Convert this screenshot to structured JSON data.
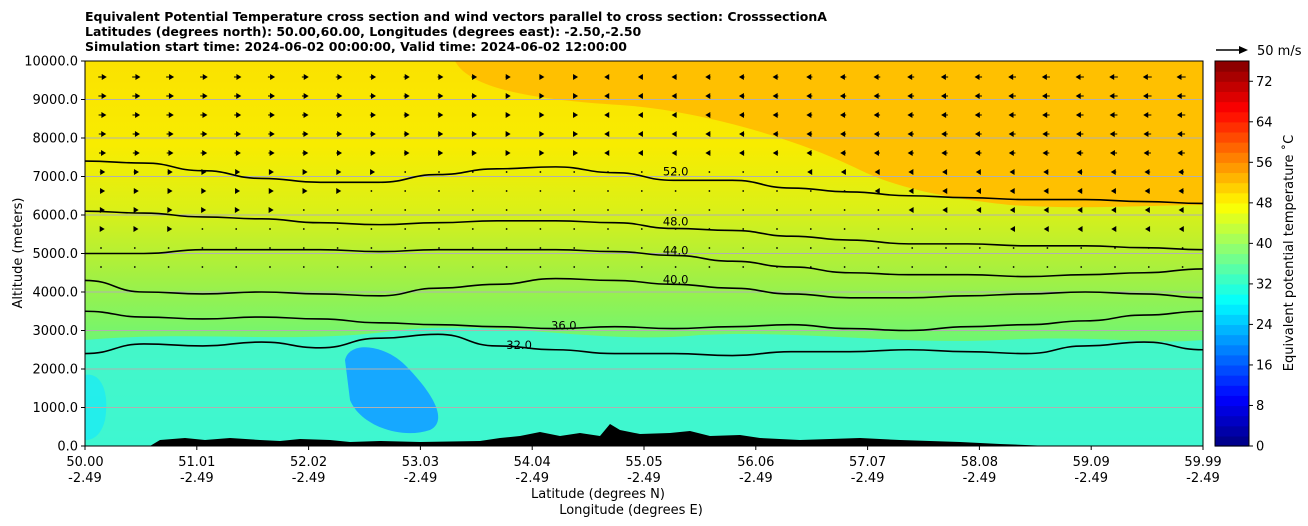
{
  "chart_data": {
    "type": "contourf-cross-section",
    "title_lines": [
      "Equivalent Potential Temperature cross section and wind vectors parallel to cross section: CrosssectionA",
      "Latitudes (degrees north): 50.00,60.00, Longitudes (degrees east): -2.50,-2.50",
      "Simulation start time: 2024-06-02 00:00:00, Valid time: 2024-06-02 12:00:00"
    ],
    "xlabel": "Latitude (degrees N)",
    "xlabel2": "Longitude (degrees E)",
    "ylabel": "Altitude (meters)",
    "xlim": [
      50.0,
      59.99
    ],
    "ylim": [
      0,
      10000
    ],
    "x_ticks": [
      {
        "lat": "50.00",
        "lon": "-2.49"
      },
      {
        "lat": "51.01",
        "lon": "-2.49"
      },
      {
        "lat": "52.02",
        "lon": "-2.49"
      },
      {
        "lat": "53.03",
        "lon": "-2.49"
      },
      {
        "lat": "54.04",
        "lon": "-2.49"
      },
      {
        "lat": "55.05",
        "lon": "-2.49"
      },
      {
        "lat": "56.06",
        "lon": "-2.49"
      },
      {
        "lat": "57.07",
        "lon": "-2.49"
      },
      {
        "lat": "58.08",
        "lon": "-2.49"
      },
      {
        "lat": "59.09",
        "lon": "-2.49"
      },
      {
        "lat": "59.99",
        "lon": "-2.49"
      }
    ],
    "y_ticks": [
      "0.0",
      "1000.0",
      "2000.0",
      "3000.0",
      "4000.0",
      "5000.0",
      "6000.0",
      "7000.0",
      "8000.0",
      "9000.0",
      "10000.0"
    ],
    "colorbar": {
      "label": "Equivalent potential temperature ˚C",
      "min": 0,
      "max": 76,
      "step": 2,
      "ticks": [
        0,
        8,
        16,
        24,
        32,
        40,
        48,
        56,
        64,
        72
      ],
      "colormap": "jet"
    },
    "contour_lines": [
      {
        "level": 52,
        "label": "52.0",
        "alt_m": [
          7400,
          7350,
          7150,
          6950,
          6850,
          6850,
          7050,
          7200,
          7250,
          7100,
          6900,
          6900,
          6700,
          6600,
          6500,
          6450,
          6400,
          6400,
          6350,
          6300
        ]
      },
      {
        "level": 48,
        "label": "48.0",
        "alt_m": [
          6100,
          6050,
          5950,
          5900,
          5800,
          5750,
          5800,
          5850,
          5850,
          5800,
          5650,
          5600,
          5450,
          5350,
          5250,
          5250,
          5200,
          5200,
          5150,
          5100
        ]
      },
      {
        "level": 44,
        "label": "44.0",
        "alt_m": [
          5000,
          5000,
          5100,
          5100,
          5100,
          5050,
          5100,
          5100,
          5100,
          5050,
          4950,
          4800,
          4650,
          4500,
          4450,
          4450,
          4400,
          4450,
          4500,
          4600
        ]
      },
      {
        "level": 40,
        "label": "40.0",
        "alt_m": [
          4300,
          4000,
          3950,
          4000,
          3950,
          3900,
          4100,
          4200,
          4350,
          4300,
          4200,
          4100,
          3950,
          3850,
          3850,
          3900,
          3950,
          4000,
          3950,
          3850
        ]
      },
      {
        "level": 36,
        "label": "36.0",
        "alt_m": [
          3500,
          3350,
          3300,
          3350,
          3300,
          3200,
          3150,
          3100,
          3050,
          3100,
          3050,
          3100,
          3150,
          3050,
          3000,
          3100,
          3150,
          3250,
          3400,
          3500
        ]
      },
      {
        "level": 32,
        "label": "32.0",
        "alt_m": [
          2400,
          2650,
          2600,
          2700,
          2550,
          2800,
          2900,
          2600,
          2500,
          2400,
          2400,
          2350,
          2450,
          2450,
          2500,
          2450,
          2400,
          2600,
          2700,
          2500
        ]
      }
    ],
    "wind_vector_key": "50 m/s"
  }
}
